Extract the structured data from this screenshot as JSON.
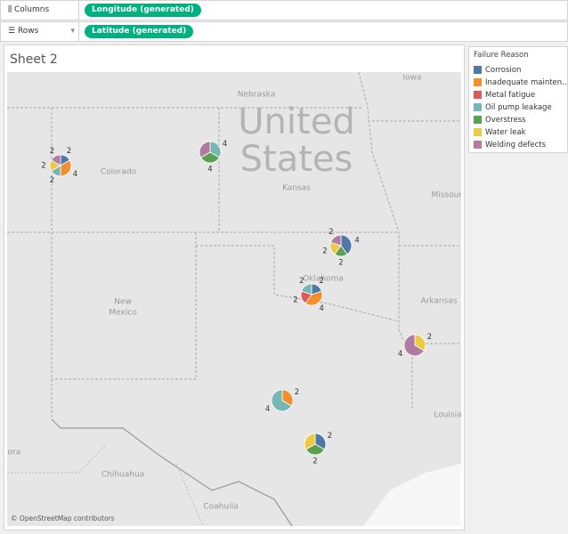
{
  "shelves": {
    "columns": {
      "label": "Columns",
      "pill": "Longitude (generated)"
    },
    "rows": {
      "label": "Rows",
      "pill": "Latitude (generated)"
    }
  },
  "sheet": {
    "title": "Sheet 2",
    "map_labels": [
      "Nebraska",
      "Iowa",
      "United",
      "States",
      "Colorado",
      "Kansas",
      "Missouri",
      "Oklahoma",
      "New",
      "Mexico",
      "Arkansas",
      "Louisia",
      "nora",
      "Chihuahua",
      "Coahuila"
    ],
    "attribution": "© OpenStreetMap contributors",
    "pies": [
      {
        "segments": [
          {
            "reason": "Corrosion",
            "value": 2
          },
          {
            "reason": "Inadequate mainten..",
            "value": 4
          },
          {
            "reason": "Oil pump leakage",
            "value": 2
          },
          {
            "reason": "Water  leak",
            "value": 2
          },
          {
            "reason": "Welding defects",
            "value": 2
          }
        ]
      },
      {
        "segments": [
          {
            "reason": "Oil pump leakage",
            "value": 4
          },
          {
            "reason": "Overstress",
            "value": 4
          },
          {
            "reason": "Welding defects",
            "value": 4,
            "show_label": false
          }
        ]
      },
      {
        "segments": [
          {
            "reason": "Corrosion",
            "value": 4
          },
          {
            "reason": "Overstress",
            "value": 2
          },
          {
            "reason": "Water  leak",
            "value": 2
          },
          {
            "reason": "Welding defects",
            "value": 2
          }
        ]
      },
      {
        "segments": [
          {
            "reason": "Corrosion",
            "value": 2
          },
          {
            "reason": "Inadequate mainten..",
            "value": 4
          },
          {
            "reason": "Metal fatigue",
            "value": 2
          },
          {
            "reason": "Oil pump leakage",
            "value": 2
          }
        ]
      },
      {
        "segments": [
          {
            "reason": "Water  leak",
            "value": 2
          },
          {
            "reason": "Welding defects",
            "value": 4
          }
        ]
      },
      {
        "segments": [
          {
            "reason": "Inadequate mainten..",
            "value": 2
          },
          {
            "reason": "Oil pump leakage",
            "value": 4
          }
        ]
      },
      {
        "segments": [
          {
            "reason": "Corrosion",
            "value": 2
          },
          {
            "reason": "Overstress",
            "value": 2
          },
          {
            "reason": "Water  leak",
            "value": 2,
            "show_label": false
          }
        ]
      }
    ]
  },
  "legend": {
    "title": "Failure Reason",
    "items": [
      {
        "name": "Corrosion",
        "color": "#4e79a7"
      },
      {
        "name": "Inadequate mainten..",
        "color": "#f28e2b"
      },
      {
        "name": "Metal fatigue",
        "color": "#e15759"
      },
      {
        "name": "Oil pump leakage",
        "color": "#76b7b2"
      },
      {
        "name": "Overstress",
        "color": "#59a14f"
      },
      {
        "name": "Water  leak",
        "color": "#edc948"
      },
      {
        "name": "Welding defects",
        "color": "#b07aa1"
      }
    ]
  }
}
